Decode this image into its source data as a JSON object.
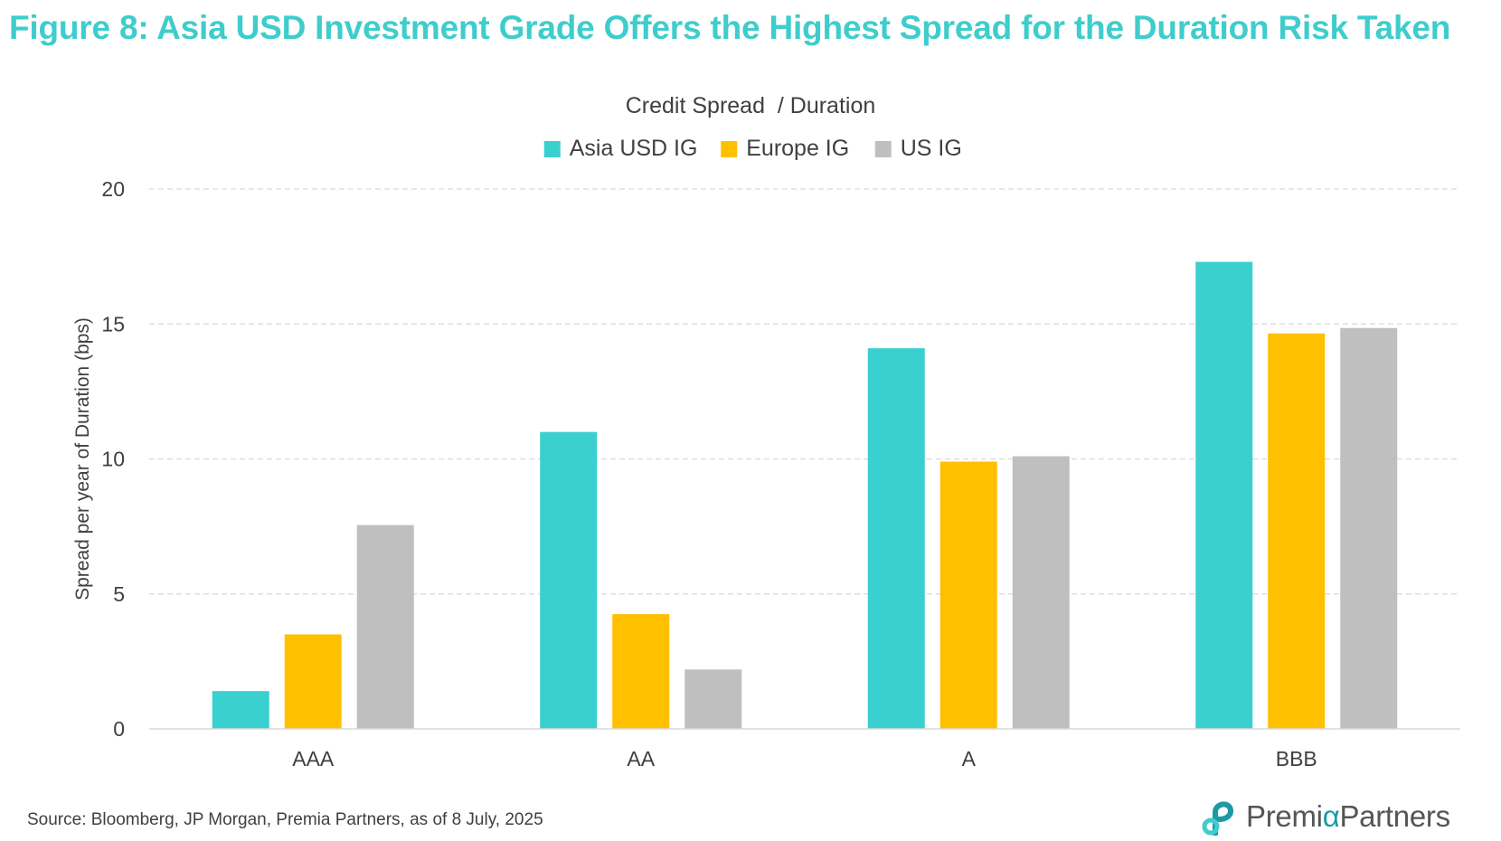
{
  "figure": {
    "title": "Figure 8: Asia USD Investment Grade Offers the Highest Spread for the Duration Risk Taken",
    "title_color": "#3ecdcc"
  },
  "chart_data": {
    "type": "bar",
    "title": "Credit Spread  / Duration",
    "xlabel": "",
    "ylabel": "Spread per year of Duration (bps)",
    "categories": [
      "AAA",
      "AA",
      "A",
      "BBB"
    ],
    "series": [
      {
        "name": "Asia USD IG",
        "color": "#3ad0cf",
        "values": [
          1.4,
          11.0,
          14.1,
          17.3
        ]
      },
      {
        "name": "Europe IG",
        "color": "#ffc000",
        "values": [
          3.5,
          4.25,
          9.9,
          14.65
        ]
      },
      {
        "name": "US IG",
        "color": "#bfbfbf",
        "values": [
          7.55,
          2.2,
          10.1,
          14.85
        ]
      }
    ],
    "ylim": [
      0,
      20
    ],
    "yticks": [
      0,
      5,
      10,
      15,
      20
    ],
    "grid": true,
    "legend_position": "top-center"
  },
  "footer": {
    "source": "Source: Bloomberg, JP Morgan, Premia Partners, as of 8 July, 2025",
    "logo_text_a": "Premi",
    "logo_text_alpha": "α",
    "logo_text_b": "Partners",
    "logo_icon": "premia-logo-icon",
    "logo_color": "#1a9aa3"
  }
}
